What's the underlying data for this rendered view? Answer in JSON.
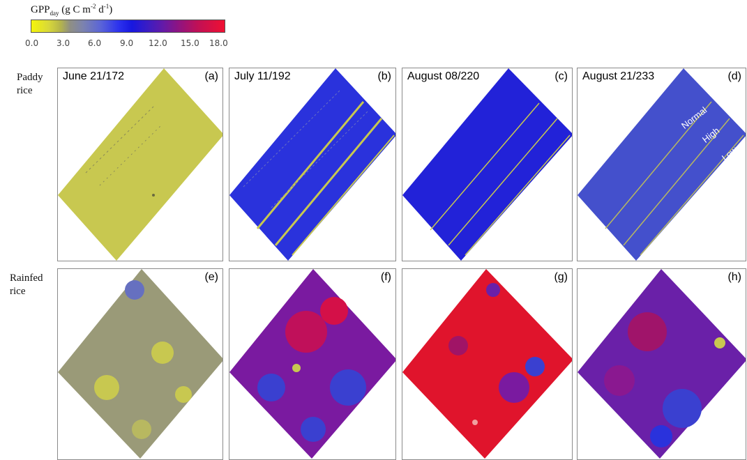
{
  "colorbar": {
    "title_main": "GPP",
    "title_sub": "day",
    "title_unit_a": " (g C m",
    "title_unit_sup1": "-2",
    "title_unit_b": " d",
    "title_unit_sup2": "-1",
    "title_unit_c": ")",
    "ticks": [
      "0.0",
      "3.0",
      "6.0",
      "9.0",
      "12.0",
      "15.0",
      "18.0"
    ]
  },
  "rows": {
    "paddy_label_1": "Paddy",
    "paddy_label_2": "rice",
    "rainfed_label_1": "Rainfed",
    "rainfed_label_2": "rice"
  },
  "panels": [
    {
      "title": "June 21/172",
      "letter": "(a)",
      "color": "#c8c850"
    },
    {
      "title": "July 11/192",
      "letter": "(b)",
      "color": "#2a32dc"
    },
    {
      "title": "August 08/220",
      "letter": "(c)",
      "color": "#2222d8"
    },
    {
      "title": "August 21/233",
      "letter": "(d)",
      "color": "#4450cc"
    },
    {
      "title": "",
      "letter": "(e)",
      "color": "#9a9a78"
    },
    {
      "title": "",
      "letter": "(f)",
      "color": "#7a1aa0"
    },
    {
      "title": "",
      "letter": "(g)",
      "color": "#e0142c"
    },
    {
      "title": "",
      "letter": "(h)",
      "color": "#6a20a8"
    }
  ],
  "zones": {
    "normal": "Normal",
    "high": "High",
    "low": "Low"
  }
}
